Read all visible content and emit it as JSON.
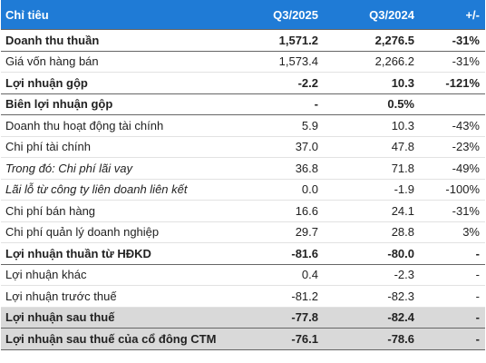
{
  "table": {
    "header": [
      "Chỉ tiêu",
      "Q3/2025",
      "Q3/2024",
      "+/-"
    ],
    "rows": [
      [
        "Doanh thu thuần",
        "1,571.2",
        "2,276.5",
        "-31%"
      ],
      [
        "Giá vốn hàng bán",
        "1,573.4",
        "2,266.2",
        "-31%"
      ],
      [
        "Lợi nhuận gộp",
        "-2.2",
        "10.3",
        "-121%"
      ],
      [
        "Biên lợi nhuận gộp",
        "-",
        "0.5%",
        ""
      ],
      [
        "Doanh thu hoạt động tài chính",
        "5.9",
        "10.3",
        "-43%"
      ],
      [
        "Chi phí tài chính",
        "37.0",
        "47.8",
        "-23%"
      ],
      [
        "Trong đó: Chi phí lãi vay",
        "36.8",
        "71.8",
        "-49%"
      ],
      [
        "Lãi lỗ từ công ty liên doanh liên kết",
        "0.0",
        "-1.9",
        "-100%"
      ],
      [
        "Chi phí bán hàng",
        "16.6",
        "24.1",
        "-31%"
      ],
      [
        "Chi phí quản lý doanh nghiệp",
        "29.7",
        "28.8",
        "3%"
      ],
      [
        "Lợi nhuận thuần từ HĐKD",
        "-81.6",
        "-80.0",
        "-"
      ],
      [
        "Lợi nhuận khác",
        "0.4",
        "-2.3",
        "-"
      ],
      [
        "Lợi nhuận trước thuế",
        "-81.2",
        "-82.3",
        "-"
      ],
      [
        "Lợi nhuận sau thuế",
        "-77.8",
        "-82.4",
        "-"
      ],
      [
        "Lợi nhuận sau thuế của cổ đông CTM",
        "-76.1",
        "-78.6",
        "-"
      ]
    ]
  }
}
